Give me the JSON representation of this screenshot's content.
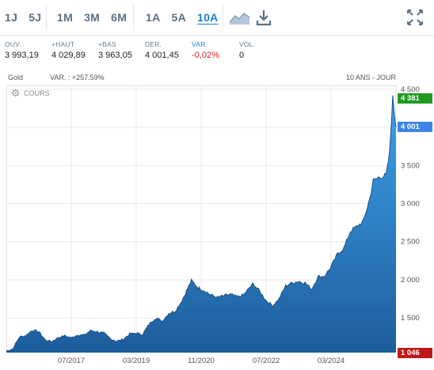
{
  "toolbar": {
    "short_periods": [
      "1J",
      "5J"
    ],
    "mid_periods": [
      "1M",
      "3M",
      "6M"
    ],
    "long_periods": [
      "1A",
      "5A",
      "10A"
    ],
    "active_period": "10A",
    "icons": [
      "area-chart-icon",
      "download-icon",
      "fullscreen-icon"
    ]
  },
  "quote": {
    "ouv_label": "OUV.",
    "ouv_value": "3 993,19",
    "haut_label": "+HAUT",
    "haut_value": "4 029,89",
    "bas_label": "+BAS",
    "bas_value": "3 963,05",
    "der_label": "DER.",
    "der_value": "4 001,45",
    "var_label": "VAR.",
    "var_value": "-0,02%",
    "vol_label": "VOL.",
    "vol_value": "0"
  },
  "chart_header": {
    "instrument": "Gold",
    "variation": "VAR. : +257.59%",
    "range": "10 ANS - JOUR",
    "series_label": "COURS"
  },
  "price_tags": {
    "high": "4 381",
    "last": "4 001",
    "low": "1 046",
    "high_color": "#1f9a1f",
    "last_color": "#3a86e8",
    "low_color": "#c01818"
  },
  "chart_data": {
    "type": "area",
    "title": "",
    "series": [
      {
        "name": "COURS",
        "x": [
          "2015-11",
          "2016-01",
          "2016-03",
          "2016-05",
          "2016-07",
          "2016-09",
          "2016-11",
          "2017-01",
          "2017-03",
          "2017-05",
          "2017-07",
          "2017-09",
          "2017-11",
          "2018-01",
          "2018-03",
          "2018-05",
          "2018-07",
          "2018-09",
          "2018-11",
          "2019-01",
          "2019-03",
          "2019-05",
          "2019-07",
          "2019-09",
          "2019-11",
          "2020-01",
          "2020-03",
          "2020-05",
          "2020-08",
          "2020-10",
          "2020-12",
          "2021-02",
          "2021-04",
          "2021-06",
          "2021-08",
          "2021-10",
          "2021-12",
          "2022-02",
          "2022-03",
          "2022-05",
          "2022-07",
          "2022-09",
          "2022-11",
          "2023-01",
          "2023-03",
          "2023-05",
          "2023-07",
          "2023-09",
          "2023-11",
          "2024-01",
          "2024-03",
          "2024-05",
          "2024-07",
          "2024-09",
          "2024-11",
          "2025-01",
          "2025-03",
          "2025-04",
          "2025-06",
          "2025-08",
          "2025-09",
          "2025-10",
          "2025-11"
        ],
        "values": [
          1068,
          1095,
          1250,
          1270,
          1340,
          1320,
          1210,
          1190,
          1245,
          1265,
          1240,
          1280,
          1275,
          1335,
          1320,
          1300,
          1230,
          1195,
          1220,
          1290,
          1300,
          1285,
          1420,
          1500,
          1460,
          1560,
          1590,
          1720,
          1990,
          1900,
          1860,
          1800,
          1770,
          1790,
          1810,
          1775,
          1800,
          1900,
          1950,
          1850,
          1730,
          1660,
          1750,
          1920,
          1960,
          1980,
          1960,
          1880,
          2040,
          2050,
          2170,
          2340,
          2420,
          2640,
          2700,
          2770,
          3080,
          3300,
          3350,
          3370,
          3650,
          4381,
          4001
        ],
        "color": "#1a7fd4"
      }
    ],
    "ylim": [
      1046,
      4550
    ],
    "yticks": [
      "4 500",
      "4 000",
      "3 500",
      "3 000",
      "2 500",
      "2 000",
      "1 500"
    ],
    "ytick_values": [
      4500,
      4000,
      3500,
      3000,
      2500,
      2000,
      1500
    ],
    "xticks": [
      "07/2017",
      "03/2019",
      "11/2020",
      "07/2022",
      "03/2024"
    ],
    "xtick_dates": [
      "2017-07",
      "2019-03",
      "2020-11",
      "2022-07",
      "2024-03"
    ],
    "x_range": [
      "2015-11",
      "2025-11"
    ],
    "grid": true
  }
}
